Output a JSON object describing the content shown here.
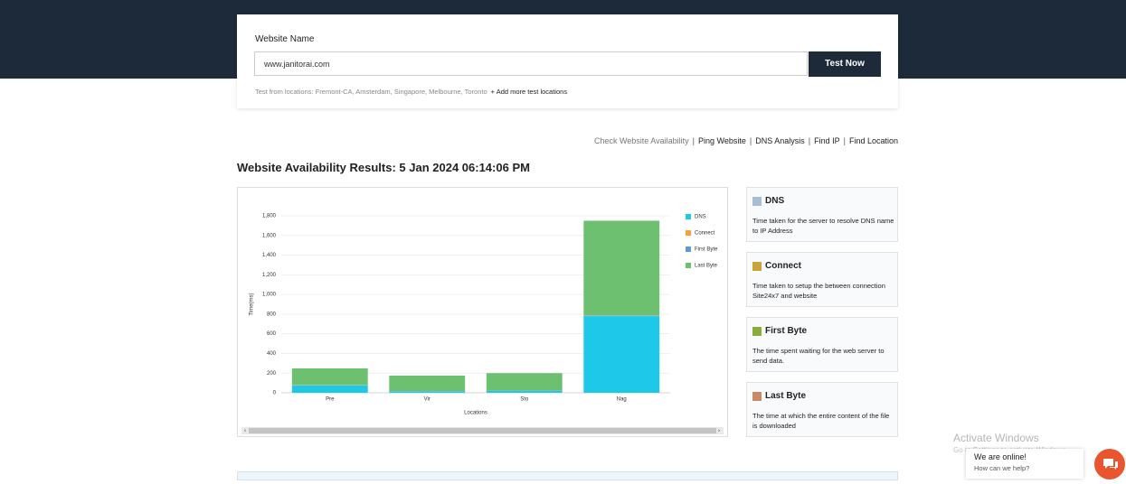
{
  "header": {
    "label": "Website Name",
    "input": "www.janitorai.com",
    "button": "Test Now",
    "locations": "Test from locations: Fremont-CA, Amsterdam, Singapore, Melbourne, Toronto",
    "add": "+ Add more test locations"
  },
  "links": [
    "Check Website Availability",
    "Ping Website",
    "DNS Analysis",
    "Find IP",
    "Find Location"
  ],
  "results_title": "Website Availability Results: 5 Jan 2024 06:14:06 PM",
  "chart_data": {
    "type": "bar",
    "stacked": true,
    "y_label": "Time(ms)",
    "x_label": "Locations",
    "legend": "top-right",
    "grid": true,
    "categories": [
      "Pre",
      "Vir",
      "Sto",
      "Nag"
    ],
    "series": [
      {
        "name": "DNS",
        "color": "#1ec8e8",
        "values": [
          75,
          15,
          20,
          780
        ]
      },
      {
        "name": "Connect",
        "color": "#f7a035",
        "values": [
          2,
          1,
          1,
          3
        ]
      },
      {
        "name": "First Byte",
        "color": "#5b9bd5",
        "values": [
          3,
          2,
          2,
          5
        ]
      },
      {
        "name": "Last Byte",
        "color": "#6cc070",
        "values": [
          168,
          157,
          177,
          962
        ]
      }
    ],
    "ylim": [
      0,
      1800
    ],
    "yticks": [
      0,
      200,
      400,
      600,
      800,
      {
        "value": 1000,
        "label": "1,000"
      },
      {
        "value": 1200,
        "label": "1,200"
      },
      {
        "value": 1400,
        "label": "1,400"
      },
      {
        "value": 1600,
        "label": "1,600"
      },
      {
        "value": 1800,
        "label": "1,800"
      }
    ]
  },
  "legend_cards": [
    {
      "title": "DNS",
      "color": "#a6bdd4",
      "desc": "Time taken for the server to resolve DNS name to IP Address"
    },
    {
      "title": "Connect",
      "color": "#c9a43a",
      "desc": "Time taken to setup the between connection Site24x7 and website"
    },
    {
      "title": "First Byte",
      "color": "#8aac3a",
      "desc": "The time spent waiting for the web server to send data."
    },
    {
      "title": "Last Byte",
      "color": "#c98a68",
      "desc": "The time at which the entire content of the file is downloaded"
    }
  ],
  "overlay": {
    "activate": "Activate Windows",
    "activate_sub": "Go to Settings to activate Windows.",
    "chat_title": "We are online!",
    "chat_sub": "How can we help?"
  }
}
